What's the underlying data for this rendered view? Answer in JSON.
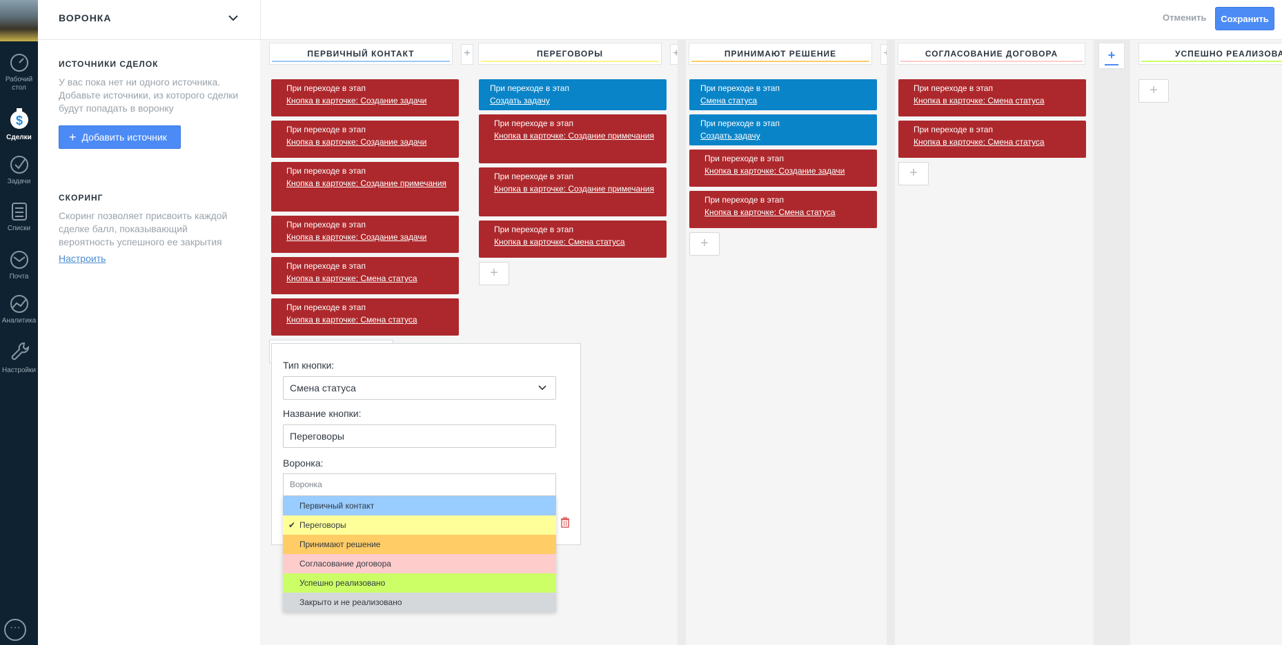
{
  "header": {
    "pipeline_name": "ВОРОНКА",
    "cancel_label": "Отменить",
    "save_label": "Сохранить"
  },
  "nav": {
    "items": [
      {
        "label_line1": "Рабочий",
        "label_line2": "стол",
        "icon": "speedometer-icon"
      },
      {
        "label_line1": "Сделки",
        "label_line2": "",
        "icon": "deals-icon"
      },
      {
        "label_line1": "Задачи",
        "label_line2": "",
        "icon": "checkmark-icon"
      },
      {
        "label_line1": "Списки",
        "label_line2": "",
        "icon": "list-icon"
      },
      {
        "label_line1": "Почта",
        "label_line2": "",
        "icon": "mail-icon"
      },
      {
        "label_line1": "Аналитика",
        "label_line2": "",
        "icon": "analytics-icon"
      },
      {
        "label_line1": "Настройки",
        "label_line2": "",
        "icon": "wrench-icon"
      }
    ],
    "chat_icon": "chat-icon"
  },
  "side": {
    "sources_title": "ИСТОЧНИКИ СДЕЛОК",
    "sources_text": "У вас пока нет ни одного источника. Добавьте источники, из которого сделки будут попадать в воронку",
    "add_source_label": "Добавить источник",
    "scoring_title": "СКОРИНГ",
    "scoring_text": "Скоринг позволяет присвоить каждой сделке балл, показывающий вероятность успешного ее закрытия",
    "scoring_link": "Настроить"
  },
  "columns": [
    {
      "title": "ПЕРВИЧНЫЙ КОНТАКТ",
      "line_color": "#99c9f5",
      "cards": [
        {
          "color": "red",
          "title": "При переходе в этап",
          "link": "Кнопка в карточке: Создание задачи"
        },
        {
          "color": "red",
          "title": "При переходе в этап",
          "link": "Кнопка в карточке: Создание задачи"
        },
        {
          "color": "red",
          "title": "При переходе в этап",
          "link": "Кнопка в карточке: Создание примечания"
        },
        {
          "color": "red",
          "title": "При переходе в этап",
          "link": "Кнопка в карточке: Создание задачи"
        },
        {
          "color": "red",
          "title": "При переходе в этап",
          "link": "Кнопка в карточке: Смена статуса"
        },
        {
          "color": "red",
          "title": "При переходе в этап",
          "link": "Кнопка в карточке: Смена статуса"
        }
      ]
    },
    {
      "title": "ПЕРЕГОВОРЫ",
      "line_color": "#fff38a",
      "cards": [
        {
          "color": "blue",
          "title": "При переходе в этап",
          "link": "Создать задачу"
        },
        {
          "color": "red",
          "title": "При переходе в этап",
          "link": "Кнопка в карточке: Создание примечания"
        },
        {
          "color": "red",
          "title": "При переходе в этап",
          "link": "Кнопка в карточке: Создание примечания"
        },
        {
          "color": "red",
          "title": "При переходе в этап",
          "link": "Кнопка в карточке: Смена статуса"
        }
      ]
    },
    {
      "title": "ПРИНИМАЮТ РЕШЕНИЕ",
      "line_color": "#ffcc66",
      "cards": [
        {
          "color": "blue",
          "title": "При переходе в этап",
          "link": "Смена статуса"
        },
        {
          "color": "blue",
          "title": "При переходе в этап",
          "link": "Создать задачу"
        },
        {
          "color": "red",
          "title": "При переходе в этап",
          "link": "Кнопка в карточке: Создание задачи"
        },
        {
          "color": "red",
          "title": "При переходе в этап",
          "link": "Кнопка в карточке: Смена статуса"
        }
      ]
    },
    {
      "title": "СОГЛАСОВАНИЕ ДОГОВОРА",
      "line_color": "#ffcccc",
      "cards": [
        {
          "color": "red",
          "title": "При переходе в этап",
          "link": "Кнопка в карточке: Смена статуса"
        },
        {
          "color": "red",
          "title": "При переходе в этап",
          "link": "Кнопка в карточке: Смена статуса"
        }
      ]
    },
    {
      "title": "УСПЕШНО РЕАЛИЗОВАНО",
      "line_color": "#ccff66",
      "cards": []
    }
  ],
  "form": {
    "button_type_label": "Тип кнопки:",
    "button_type_value": "Смена статуса",
    "button_name_label": "Название кнопки:",
    "button_name_value": "Переговоры",
    "pipeline_label": "Воронка:",
    "pipeline_search_placeholder": "Воронка",
    "options": [
      {
        "label": "Первичный контакт",
        "color": "#99ccff",
        "selected": false
      },
      {
        "label": "Переговоры",
        "color": "#ffff99",
        "selected": true
      },
      {
        "label": "Принимают решение",
        "color": "#ffcc66",
        "selected": false
      },
      {
        "label": "Согласование договора",
        "color": "#ffcccc",
        "selected": false
      },
      {
        "label": "Успешно реализовано",
        "color": "#ccff66",
        "selected": false
      },
      {
        "label": "Закрыто и не реализовано",
        "color": "#d5d8db",
        "selected": false
      }
    ]
  }
}
